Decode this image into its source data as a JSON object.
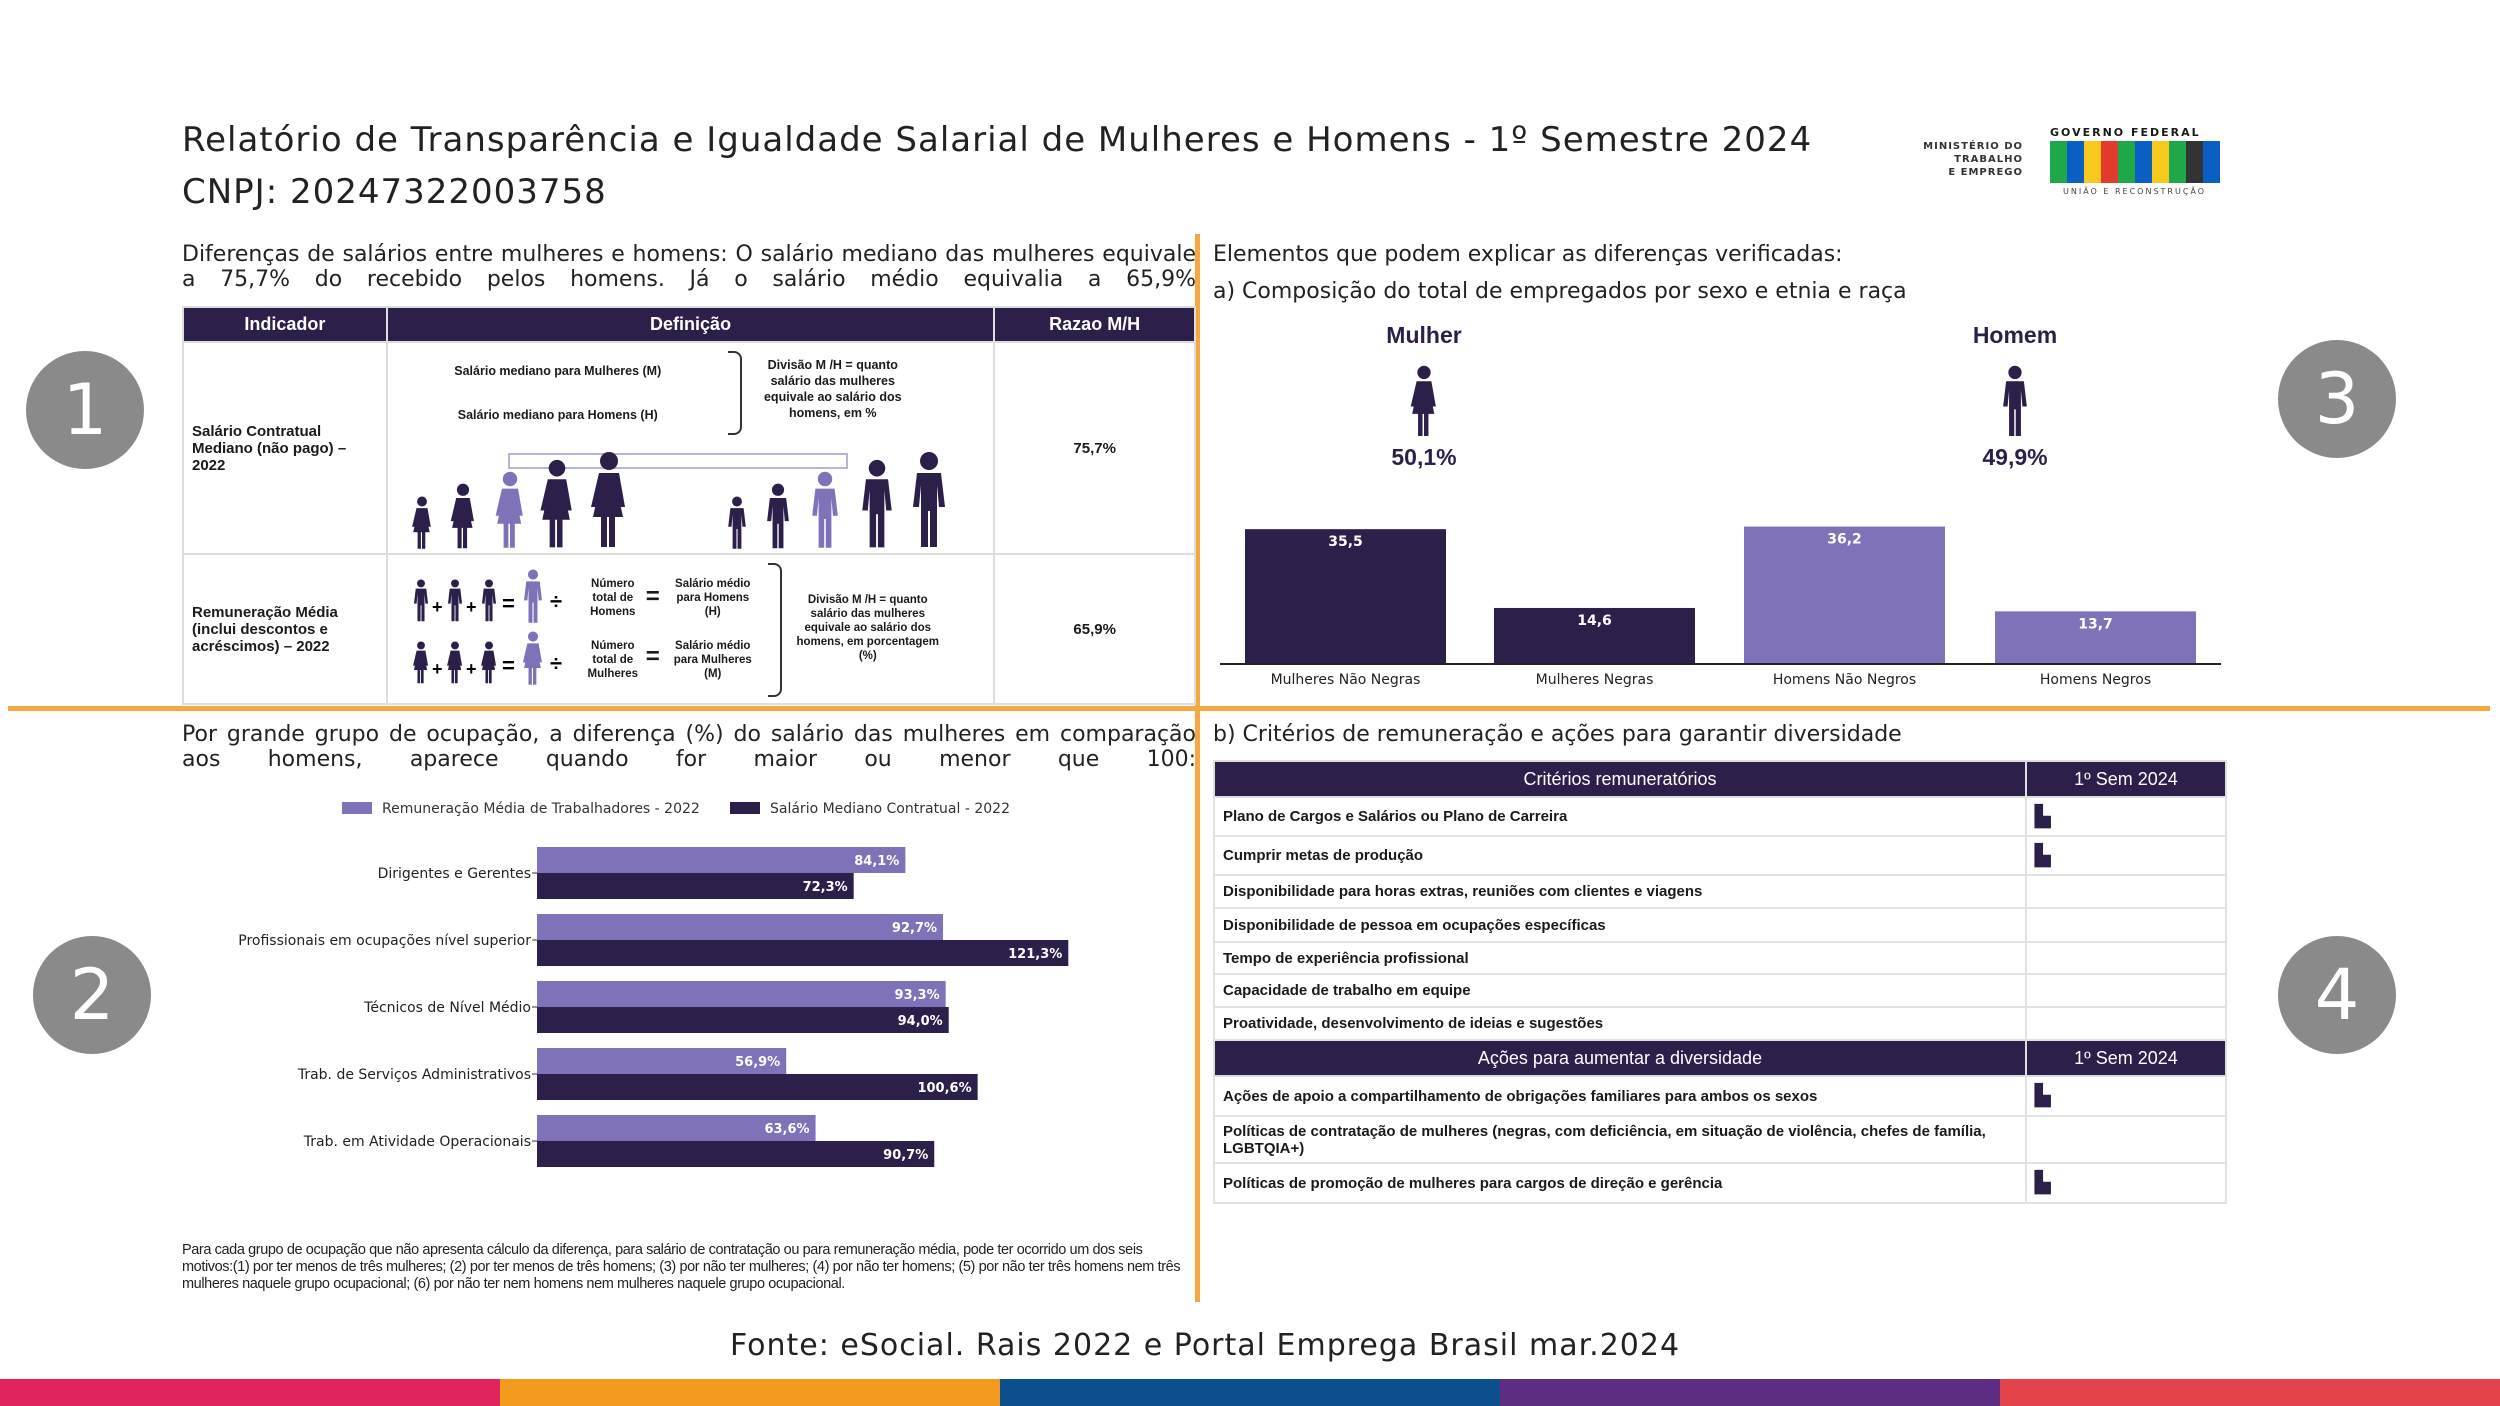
{
  "header": {
    "title": "Relatório de Transparência e Igualdade Salarial de Mulheres e Homens - 1º Semestre 2024",
    "cnpj": "CNPJ: 20247322003758",
    "logo": {
      "ministry": [
        "MINISTÉRIO DO",
        "TRABALHO",
        "E EMPREGO"
      ],
      "gov": "GOVERNO FEDERAL",
      "brand": "BRASIL",
      "slogan": "UNIÃO E RECONSTRUÇÃO"
    }
  },
  "markers": [
    "1",
    "2",
    "3",
    "4"
  ],
  "section1": {
    "intro": "Diferenças de salários entre mulheres e homens: O salário mediano das mulheres equivale a 75,7% do recebido pelos homens. Já o salário médio equivalia a 65,9%",
    "headers": [
      "Indicador",
      "Definição",
      "Razao M/H"
    ],
    "rows": [
      {
        "indicator": "Salário Contratual Mediano (não pago) – 2022",
        "def_m": "Salário mediano para Mulheres (M)",
        "def_h": "Salário mediano para Homens (H)",
        "division": "Divisão M /H = quanto salário das mulheres equivale ao salário dos homens, em %",
        "ratio": "75,7%"
      },
      {
        "indicator": "Remuneração Média (inclui descontos e acréscimos) – 2022",
        "num_h": "Número total de Homens",
        "avg_h": "Salário médio para Homens (H)",
        "num_m": "Número total de Mulheres",
        "avg_m": "Salário médio para Mulheres (M)",
        "division": "Divisão M /H = quanto salário das mulheres equivale ao salário dos homens, em porcentagem (%)",
        "ratio": "65,9%"
      }
    ]
  },
  "section3": {
    "intro": "Elementos que podem explicar as diferenças verificadas:",
    "subtitle": "a) Composição do total de empregados por sexo e etnia e raça",
    "mulher": {
      "label": "Mulher",
      "pct": "50,1%"
    },
    "homem": {
      "label": "Homem",
      "pct": "49,9%"
    }
  },
  "section2": {
    "intro": "Por grande grupo de ocupação, a diferença (%) do salário das mulheres em comparação aos homens, aparece quando for maior ou menor que 100:",
    "footnote": "Para cada grupo de ocupação que não apresenta cálculo da diferença, para salário de contratação ou para remuneração média, pode ter ocorrido um dos seis motivos:(1) por ter menos de três mulheres; (2) por ter menos de três homens; (3) por não ter mulheres; (4) por não ter homens; (5) por não ter três homens nem três mulheres naquele grupo ocupacional; (6) por não ter nem homens nem mulheres naquele grupo ocupacional."
  },
  "chart_data": [
    {
      "type": "bar",
      "title": "Composição do total de empregados por sexo e etnia e raça",
      "categories": [
        "Mulheres Não Negras",
        "Mulheres Negras",
        "Homens Não Negros",
        "Homens Negros"
      ],
      "values": [
        35.5,
        14.6,
        36.2,
        13.7
      ],
      "labels": [
        "35,5",
        "14,6",
        "36,2",
        "13,7"
      ],
      "colors": [
        "#2c1f4a",
        "#2c1f4a",
        "#7f72b9",
        "#7f72b9"
      ],
      "ylim": [
        0,
        40
      ]
    },
    {
      "type": "bar",
      "orientation": "horizontal",
      "categories": [
        "Dirigentes e Gerentes",
        "Profissionais em ocupações nível superior",
        "Técnicos de Nível Médio",
        "Trab. de Serviços Administrativos",
        "Trab. em Atividade Operacionais"
      ],
      "series": [
        {
          "name": "Remuneração Média de Trabalhadores - 2022",
          "color": "#7f72b9",
          "values": [
            84.1,
            92.7,
            93.3,
            56.9,
            63.6
          ],
          "labels": [
            "84,1%",
            "92,7%",
            "93,3%",
            "56,9%",
            "63,6%"
          ]
        },
        {
          "name": "Salário Mediano Contratual - 2022",
          "color": "#2c1f4a",
          "values": [
            72.3,
            121.3,
            94.0,
            100.6,
            90.7
          ],
          "labels": [
            "72,3%",
            "121,3%",
            "94,0%",
            "100,6%",
            "90,7%"
          ]
        }
      ],
      "legend": "top",
      "xlim": [
        0,
        125
      ]
    }
  ],
  "section4": {
    "subtitle": "b) Critérios de remuneração e ações para garantir diversidade",
    "criteria_header": [
      "Critérios remuneratórios",
      "1º Sem 2024"
    ],
    "criteria": [
      {
        "label": "Plano de Cargos e Salários ou Plano de Carreira",
        "mark": "building-icon"
      },
      {
        "label": "Cumprir metas de produção",
        "mark": "building-icon"
      },
      {
        "label": "Disponibilidade para horas extras, reuniões com clientes e viagens",
        "mark": ""
      },
      {
        "label": "Disponibilidade de pessoa em ocupações específicas",
        "mark": ""
      },
      {
        "label": "Tempo de experiência profissional",
        "mark": ""
      },
      {
        "label": "Capacidade de trabalho em equipe",
        "mark": ""
      },
      {
        "label": "Proatividade, desenvolvimento de ideias e sugestões",
        "mark": ""
      }
    ],
    "actions_header": [
      "Ações para aumentar a diversidade",
      "1º Sem 2024"
    ],
    "actions": [
      {
        "label": "Ações de apoio a compartilhamento de obrigações familiares para ambos os sexos",
        "mark": "building-icon"
      },
      {
        "label": "Políticas de contratação de mulheres (negras, com deficiência, em situação de violência, chefes de família, LGBTQIA+)",
        "mark": ""
      },
      {
        "label": "Políticas de promoção de mulheres para cargos de direção e gerência",
        "mark": "building-icon"
      }
    ]
  },
  "source": "Fonte: eSocial. Rais 2022 e Portal Emprega Brasil mar.2024",
  "stripe_colors": [
    "#e0245e",
    "#f39a1f",
    "#0b4f8c",
    "#5c2d82",
    "#e4434b"
  ]
}
